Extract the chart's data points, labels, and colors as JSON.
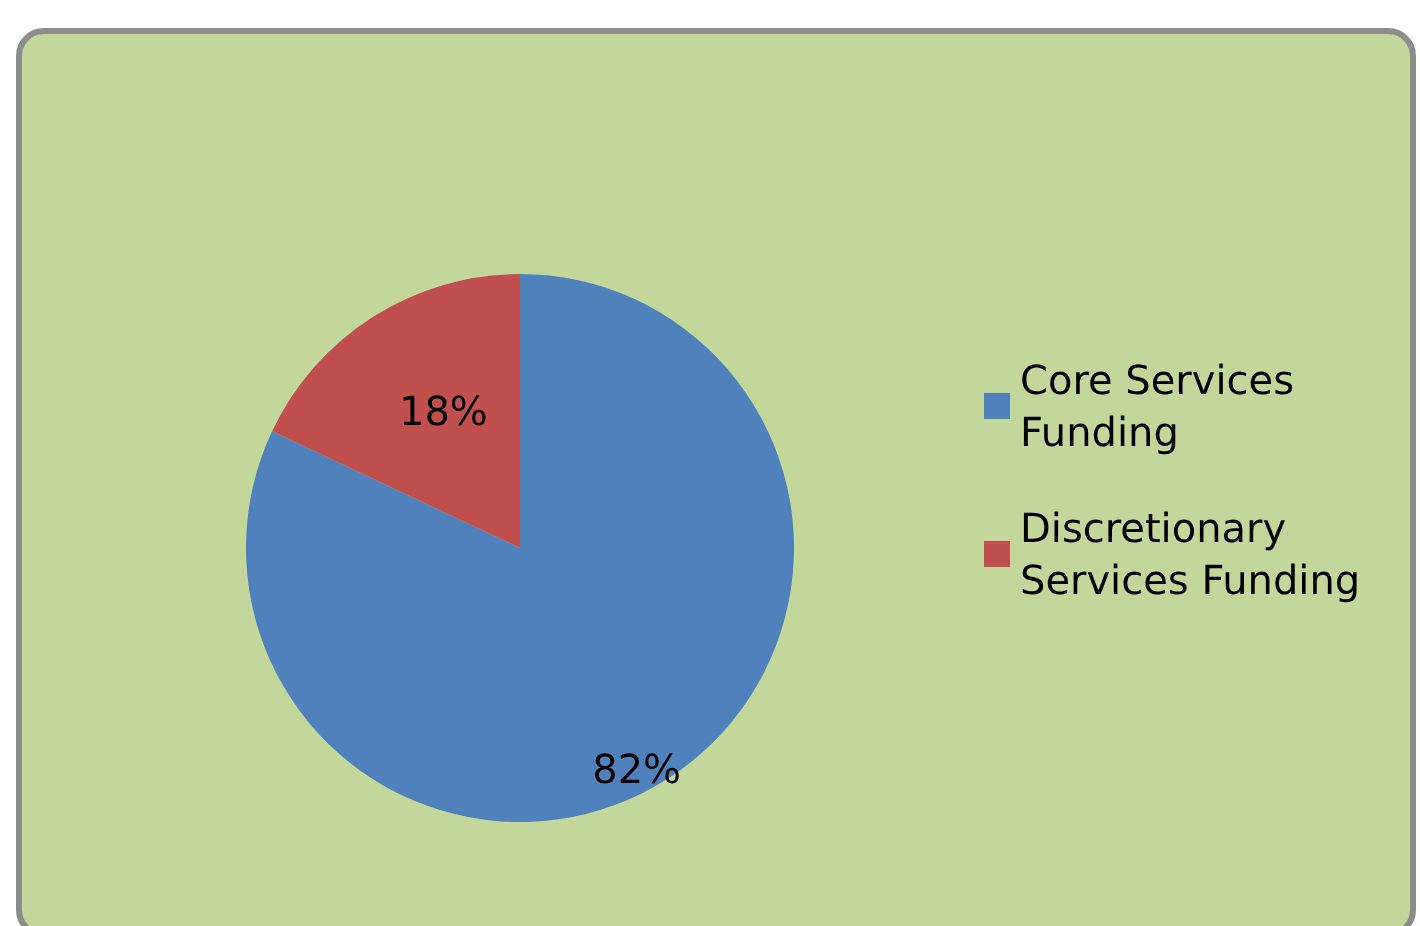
{
  "chart_data": {
    "type": "pie",
    "categories": [
      "Core Services Funding",
      "Discretionary Services Funding"
    ],
    "values": [
      82,
      18
    ],
    "colors": [
      "#4f81bd",
      "#c0504d"
    ],
    "value_labels": [
      "82%",
      "18%"
    ],
    "legend": "right"
  }
}
